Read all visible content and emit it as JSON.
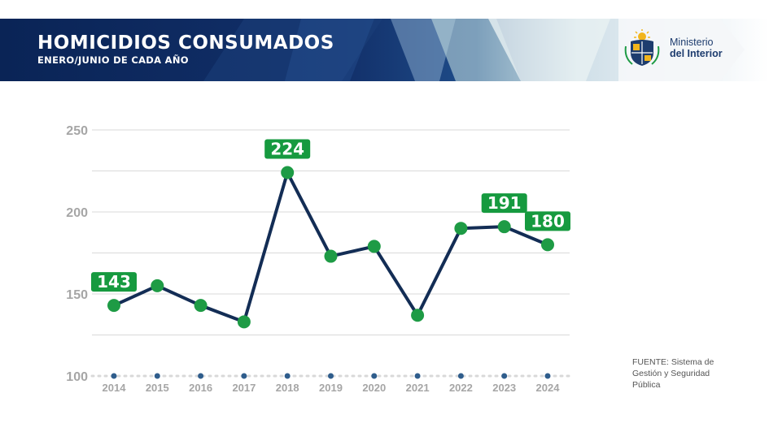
{
  "header": {
    "title": "HOMICIDIOS CONSUMADOS",
    "subtitle": "ENERO/JUNIO DE CADA AÑO",
    "ministry_line1": "Ministerio",
    "ministry_line2": "del Interior",
    "logo_icon": "uruguay-coat-of-arms-icon"
  },
  "source": "FUENTE: Sistema de Gestión y Seguridad Pública",
  "colors": {
    "banner_dark": "#0b2a5c",
    "line": "#132d55",
    "point": "#1e9b45",
    "label_bg": "#169a3f",
    "grid": "#d9d9d9",
    "tick_text": "#a6a6a6"
  },
  "chart_data": {
    "type": "line",
    "title": "HOMICIDIOS CONSUMADOS",
    "subtitle": "ENERO/JUNIO DE CADA AÑO",
    "xlabel": "",
    "ylabel": "",
    "categories": [
      "2014",
      "2015",
      "2016",
      "2017",
      "2018",
      "2019",
      "2020",
      "2021",
      "2022",
      "2023",
      "2024"
    ],
    "values": [
      143,
      155,
      143,
      133,
      224,
      173,
      179,
      137,
      190,
      191,
      180
    ],
    "data_labels": [
      {
        "category": "2014",
        "text": "143"
      },
      {
        "category": "2018",
        "text": "224"
      },
      {
        "category": "2023",
        "text": "191"
      },
      {
        "category": "2024",
        "text": "180"
      }
    ],
    "yticks": [
      100,
      150,
      200,
      250
    ],
    "ylim": [
      100,
      250
    ],
    "grid": true,
    "legend": "none"
  }
}
